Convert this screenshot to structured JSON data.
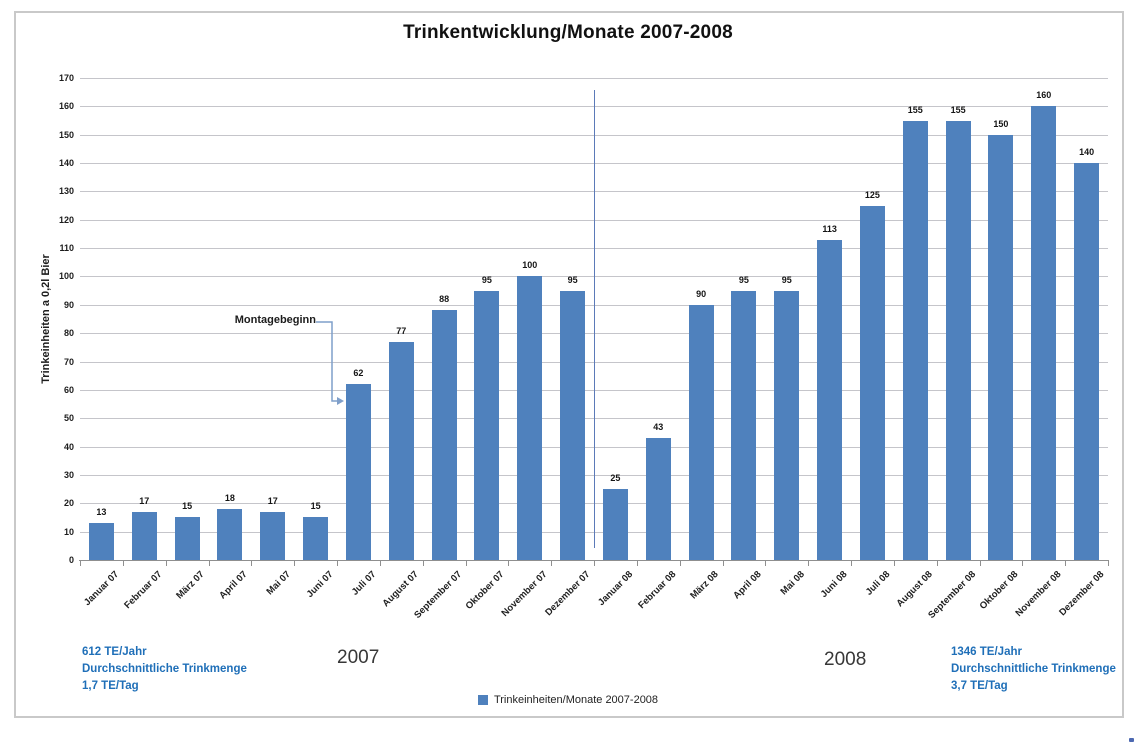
{
  "chart_data": {
    "type": "bar",
    "title": "Trinkentwicklung/Monate 2007-2008",
    "ylabel": "Trinkeinheiten a 0,2l Bier",
    "xlabel": "",
    "ylim": [
      0,
      170
    ],
    "ytick_step": 10,
    "grid": true,
    "legend_position": "bottom",
    "legend_label": "Trinkeinheiten/Monate 2007-2008",
    "bar_color": "#4F81BD",
    "gridline_color": "#c5c5ca",
    "divider_color": "#5b7ab8",
    "annotation": {
      "label": "Montagebeginn",
      "target_category": "Juli 07",
      "arrow_color": "#7f9fca"
    },
    "divider_between": [
      "Dezember 07",
      "Januar 08"
    ],
    "categories": [
      "Januar 07",
      "Februar 07",
      "März 07",
      "April 07",
      "Mai 07",
      "Juni 07",
      "Juli 07",
      "August 07",
      "September 07",
      "Oktober 07",
      "November 07",
      "Dezember 07",
      "Januar 08",
      "Februar 08",
      "März 08",
      "April 08",
      "Mai 08",
      "Juni 08",
      "Juli 08",
      "August 08",
      "September 08",
      "Oktober 08",
      "November 08",
      "Dezember 08"
    ],
    "values": [
      13,
      17,
      15,
      18,
      17,
      15,
      62,
      77,
      88,
      95,
      100,
      95,
      25,
      43,
      90,
      95,
      95,
      113,
      125,
      155,
      155,
      150,
      160,
      140
    ]
  },
  "footer": {
    "accent_color": "#1f6fb8",
    "left_stats": {
      "line1": "612 TE/Jahr",
      "line2": "Durchschnittliche Trinkmenge",
      "line3": "1,7 TE/Tag"
    },
    "year_left": "2007",
    "year_right": "2008",
    "right_stats": {
      "line1": "1346 TE/Jahr",
      "line2": "Durchschnittliche Trinkmenge",
      "line3": "3,7 TE/Tag"
    }
  }
}
